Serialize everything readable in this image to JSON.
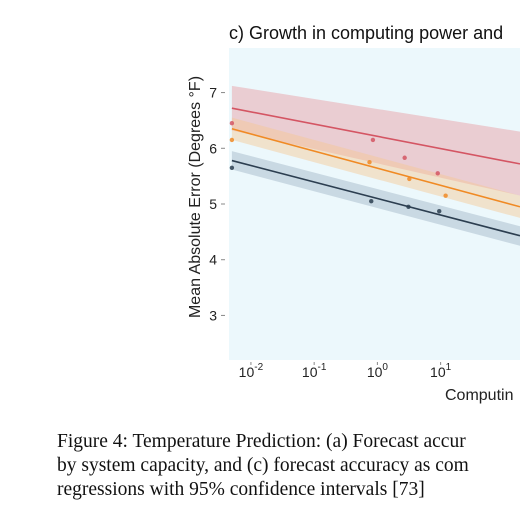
{
  "chart_data": {
    "type": "scatter",
    "title": "c) Growth in computing power and",
    "ylabel": "Mean Absolute Error (Degrees °F)",
    "xlabel": "Computin",
    "xscale": "log",
    "xlim": [
      0.0045,
      180
    ],
    "ylim": [
      2.2,
      7.8
    ],
    "grid": false,
    "x_tick_labels": [
      "10^{-2}",
      "10^{-1}",
      "10^{0}",
      "10^{1}"
    ],
    "x_ticks": [
      0.01,
      0.1,
      1,
      10
    ],
    "y_ticks": [
      3,
      4,
      5,
      6,
      7
    ],
    "series": [
      {
        "color": "#d45563",
        "band_color": "#e89aa0",
        "points": [
          [
            0.005,
            6.45
          ],
          [
            0.85,
            6.15
          ],
          [
            2.7,
            5.83
          ],
          [
            9.0,
            5.55
          ]
        ],
        "fit": [
          [
            0.005,
            6.72
          ],
          [
            180,
            5.72
          ]
        ],
        "band_upper": [
          [
            0.005,
            7.12
          ],
          [
            180,
            6.3
          ]
        ],
        "band_lower": [
          [
            0.005,
            6.32
          ],
          [
            180,
            5.15
          ]
        ]
      },
      {
        "color": "#f08a24",
        "band_color": "#f6c892",
        "points": [
          [
            0.005,
            6.15
          ],
          [
            0.75,
            5.75
          ],
          [
            3.2,
            5.45
          ],
          [
            12.0,
            5.15
          ]
        ],
        "fit": [
          [
            0.005,
            6.35
          ],
          [
            180,
            4.95
          ]
        ],
        "band_upper": [
          [
            0.005,
            6.55
          ],
          [
            180,
            5.15
          ]
        ],
        "band_lower": [
          [
            0.005,
            6.15
          ],
          [
            180,
            4.75
          ]
        ]
      },
      {
        "color": "#2c3e50",
        "band_color": "#9fb3c5",
        "points": [
          [
            0.005,
            5.65
          ],
          [
            0.8,
            5.05
          ],
          [
            3.1,
            4.95
          ],
          [
            9.5,
            4.87
          ]
        ],
        "fit": [
          [
            0.005,
            5.78
          ],
          [
            180,
            4.43
          ]
        ],
        "band_upper": [
          [
            0.005,
            5.95
          ],
          [
            180,
            4.6
          ]
        ],
        "band_lower": [
          [
            0.005,
            5.62
          ],
          [
            180,
            4.25
          ]
        ]
      }
    ]
  },
  "caption": {
    "line1": "Figure 4: Temperature Prediction: (a) Forecast accur",
    "line2": "by system capacity, and (c) forecast accuracy as com",
    "line3": "regressions with 95% confidence intervals [73]"
  },
  "colors": {
    "plot_background": "#ecf8fc",
    "axis_text": "#222222"
  }
}
